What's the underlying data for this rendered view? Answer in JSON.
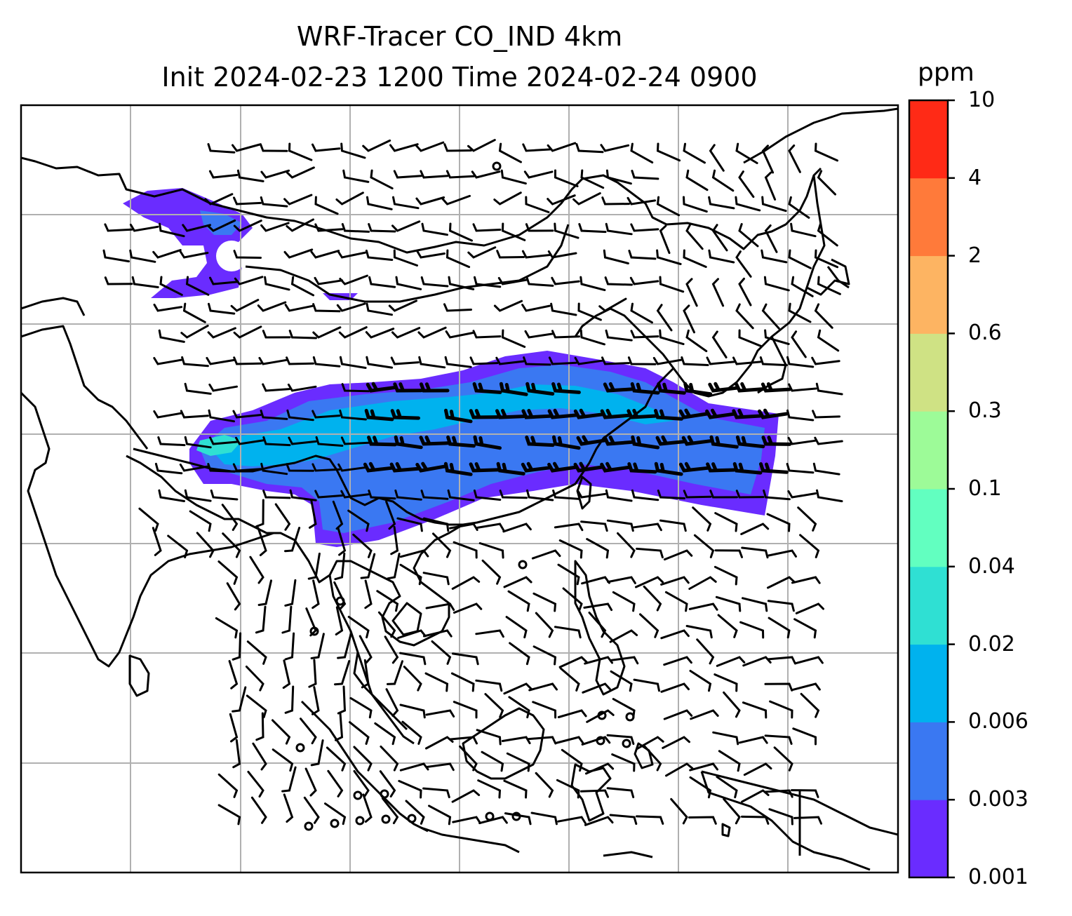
{
  "figure": {
    "title_line1": "WRF-Tracer CO_IND 4km",
    "title_line2": "Init 2024-02-23 1200 Time 2024-02-24 0900"
  },
  "colorbar": {
    "unit": "ppm",
    "tick_labels": [
      "0.001",
      "0.003",
      "0.006",
      "0.02",
      "0.04",
      "0.1",
      "0.3",
      "0.6",
      "2",
      "4",
      "10"
    ],
    "colors": [
      "#6a2cff",
      "#3a78f2",
      "#00b2ee",
      "#2fe0d3",
      "#62ffc0",
      "#9dfb98",
      "#cfe284",
      "#fdb462",
      "#ff7a3a",
      "#ff2a16"
    ]
  },
  "map": {
    "gridlines": "on",
    "coastline_color": "#000000",
    "gridline_color": "#b0b0b0",
    "wind_barbs": "black"
  }
}
